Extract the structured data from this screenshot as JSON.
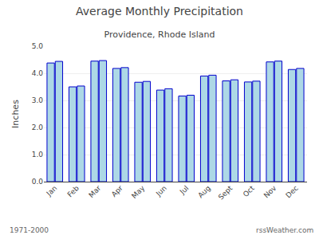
{
  "chart_data": {
    "type": "bar",
    "title": "Average Monthly Precipitation",
    "subtitle": "Providence, Rhode Island",
    "ylabel": "Inches",
    "annotations": [
      "1971-2000",
      "rssWeather.com"
    ],
    "categories": [
      "Jan",
      "Feb",
      "Mar",
      "Apr",
      "May",
      "Jun",
      "Jul",
      "Aug",
      "Sept",
      "Oct",
      "Nov",
      "Dec"
    ],
    "series": [
      {
        "color": "#add8e6",
        "values": [
          4.38,
          3.5,
          4.45,
          4.18,
          3.67,
          3.38,
          3.16,
          3.9,
          3.72,
          3.68,
          4.42,
          4.14
        ]
      },
      {
        "color": "#add8e6",
        "values": [
          4.44,
          3.53,
          4.47,
          4.21,
          3.7,
          3.43,
          3.19,
          3.93,
          3.76,
          3.71,
          4.45,
          4.18
        ]
      }
    ],
    "ylim": [
      0.0,
      5.0
    ],
    "yticks": [
      {
        "value": 0,
        "label": "0.0"
      },
      {
        "value": 1,
        "label": "1.0"
      },
      {
        "value": 2,
        "label": "2.0"
      },
      {
        "value": 3,
        "label": "3.0"
      },
      {
        "value": 4,
        "label": "4.0"
      },
      {
        "value": 5,
        "label": "5.0"
      }
    ],
    "grid": true
  }
}
